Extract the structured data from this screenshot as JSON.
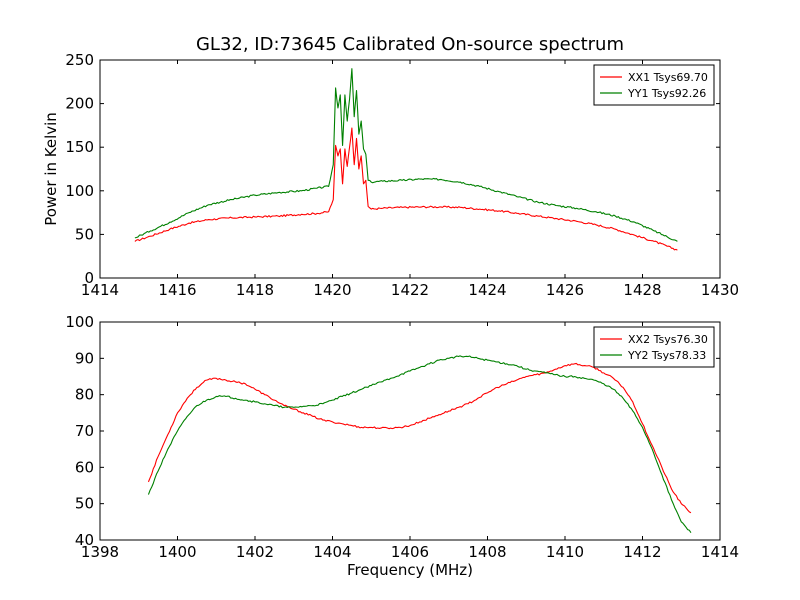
{
  "chart_data": [
    {
      "type": "line",
      "title": "GL32, ID:73645 Calibrated On-source spectrum",
      "xlabel": "",
      "ylabel": "Power in Kelvin",
      "xlim": [
        1414,
        1430
      ],
      "ylim": [
        0,
        250
      ],
      "xticks": [
        "1414",
        "1416",
        "1418",
        "1420",
        "1422",
        "1424",
        "1426",
        "1428",
        "1430"
      ],
      "yticks": [
        "0",
        "50",
        "100",
        "150",
        "200",
        "250"
      ],
      "grid": false,
      "legend_position": "top-right",
      "series": [
        {
          "name": "XX1 Tsys69.70",
          "color": "#ff0000",
          "x": [
            1414.9,
            1415.3,
            1415.8,
            1416.3,
            1416.8,
            1417.4,
            1418.0,
            1418.6,
            1419.2,
            1419.6,
            1419.9,
            1420.02,
            1420.08,
            1420.14,
            1420.2,
            1420.26,
            1420.32,
            1420.38,
            1420.44,
            1420.5,
            1420.56,
            1420.62,
            1420.68,
            1420.74,
            1420.8,
            1420.86,
            1420.92,
            1421.0,
            1421.3,
            1421.8,
            1422.3,
            1422.8,
            1423.3,
            1423.8,
            1424.3,
            1424.8,
            1425.3,
            1425.8,
            1426.3,
            1426.8,
            1427.3,
            1427.8,
            1428.3,
            1428.9
          ],
          "values": [
            42,
            48,
            56,
            63,
            67,
            69,
            70,
            71,
            73,
            74,
            76,
            90,
            152,
            140,
            148,
            108,
            148,
            128,
            150,
            172,
            130,
            160,
            125,
            140,
            108,
            112,
            82,
            79,
            80,
            81,
            81.5,
            81.5,
            81,
            79,
            77,
            74,
            71,
            68,
            65,
            61,
            56,
            49,
            42,
            32
          ]
        },
        {
          "name": "YY1 Tsys92.26",
          "color": "#008000",
          "x": [
            1414.9,
            1415.3,
            1415.8,
            1416.3,
            1416.8,
            1417.4,
            1418.0,
            1418.6,
            1419.2,
            1419.6,
            1419.9,
            1420.02,
            1420.08,
            1420.14,
            1420.2,
            1420.26,
            1420.32,
            1420.38,
            1420.44,
            1420.5,
            1420.56,
            1420.62,
            1420.68,
            1420.74,
            1420.8,
            1420.86,
            1420.92,
            1421.0,
            1421.3,
            1421.8,
            1422.3,
            1422.8,
            1423.3,
            1423.8,
            1424.3,
            1424.8,
            1425.3,
            1425.8,
            1426.3,
            1426.8,
            1427.3,
            1427.8,
            1428.3,
            1428.9
          ],
          "values": [
            46,
            54,
            64,
            75,
            84,
            90,
            95,
            98,
            100,
            103,
            105,
            130,
            218,
            195,
            210,
            152,
            210,
            180,
            205,
            240,
            185,
            215,
            165,
            180,
            148,
            142,
            112,
            110,
            111,
            112,
            113.5,
            113,
            110,
            105,
            99,
            93,
            87,
            83,
            80,
            76,
            71,
            64,
            54,
            42
          ]
        }
      ]
    },
    {
      "type": "line",
      "title": "",
      "xlabel": "Frequency (MHz)",
      "ylabel": "",
      "xlim": [
        1398,
        1414
      ],
      "ylim": [
        40,
        100
      ],
      "xticks": [
        "1398",
        "1400",
        "1402",
        "1404",
        "1406",
        "1408",
        "1410",
        "1412",
        "1414"
      ],
      "yticks": [
        "40",
        "50",
        "60",
        "70",
        "80",
        "90",
        "100"
      ],
      "grid": false,
      "legend_position": "top-right",
      "series": [
        {
          "name": "XX2 Tsys76.30",
          "color": "#ff0000",
          "x": [
            1399.25,
            1399.5,
            1399.75,
            1400.0,
            1400.25,
            1400.5,
            1400.75,
            1401.0,
            1401.25,
            1401.5,
            1401.75,
            1402.0,
            1402.25,
            1402.5,
            1402.75,
            1403.0,
            1403.25,
            1403.5,
            1403.75,
            1404.0,
            1404.25,
            1404.5,
            1404.75,
            1405.0,
            1405.25,
            1405.5,
            1405.75,
            1406.0,
            1406.25,
            1406.5,
            1406.75,
            1407.0,
            1407.25,
            1407.5,
            1407.75,
            1408.0,
            1408.25,
            1408.5,
            1408.75,
            1409.0,
            1409.25,
            1409.5,
            1409.75,
            1410.0,
            1410.25,
            1410.5,
            1410.75,
            1411.0,
            1411.25,
            1411.5,
            1411.75,
            1412.0,
            1412.25,
            1412.5,
            1412.75,
            1413.0,
            1413.25
          ],
          "values": [
            56,
            63,
            69,
            75,
            79,
            82,
            84,
            84.5,
            84,
            83.5,
            83,
            81.5,
            80,
            78.5,
            77,
            76,
            75,
            74,
            73,
            72.5,
            72,
            71.5,
            71,
            71,
            70.8,
            70.8,
            71,
            71.5,
            72.5,
            73.5,
            74.5,
            75.5,
            76.5,
            77.5,
            79,
            80.5,
            82,
            83,
            84,
            85,
            85.5,
            86,
            87,
            88,
            88.5,
            88,
            87.5,
            86,
            84.5,
            82,
            78,
            72,
            66,
            60,
            54,
            50,
            47.5
          ]
        },
        {
          "name": "YY2 Tsys78.33",
          "color": "#008000",
          "x": [
            1399.25,
            1399.5,
            1399.75,
            1400.0,
            1400.25,
            1400.5,
            1400.75,
            1401.0,
            1401.25,
            1401.5,
            1401.75,
            1402.0,
            1402.25,
            1402.5,
            1402.75,
            1403.0,
            1403.25,
            1403.5,
            1403.75,
            1404.0,
            1404.25,
            1404.5,
            1404.75,
            1405.0,
            1405.25,
            1405.5,
            1405.75,
            1406.0,
            1406.25,
            1406.5,
            1406.75,
            1407.0,
            1407.25,
            1407.5,
            1407.75,
            1408.0,
            1408.25,
            1408.5,
            1408.75,
            1409.0,
            1409.25,
            1409.5,
            1409.75,
            1410.0,
            1410.25,
            1410.5,
            1410.75,
            1411.0,
            1411.25,
            1411.5,
            1411.75,
            1412.0,
            1412.25,
            1412.5,
            1412.75,
            1413.0,
            1413.25
          ],
          "values": [
            52.5,
            59,
            65,
            70,
            74,
            77,
            78.5,
            79.5,
            79.5,
            79,
            78.5,
            78,
            77.5,
            77,
            76.5,
            76.5,
            76.8,
            77,
            77.5,
            78.5,
            79.5,
            80.5,
            81.5,
            82.5,
            83.5,
            84.5,
            85.5,
            86.5,
            87.5,
            88.5,
            89.5,
            90,
            90.5,
            90.5,
            90,
            89.5,
            89,
            88.5,
            88,
            87,
            86.5,
            86,
            85.5,
            85,
            85,
            84.5,
            84,
            83,
            81.5,
            79,
            75.5,
            71,
            65,
            58,
            51,
            45,
            42
          ]
        }
      ]
    }
  ]
}
